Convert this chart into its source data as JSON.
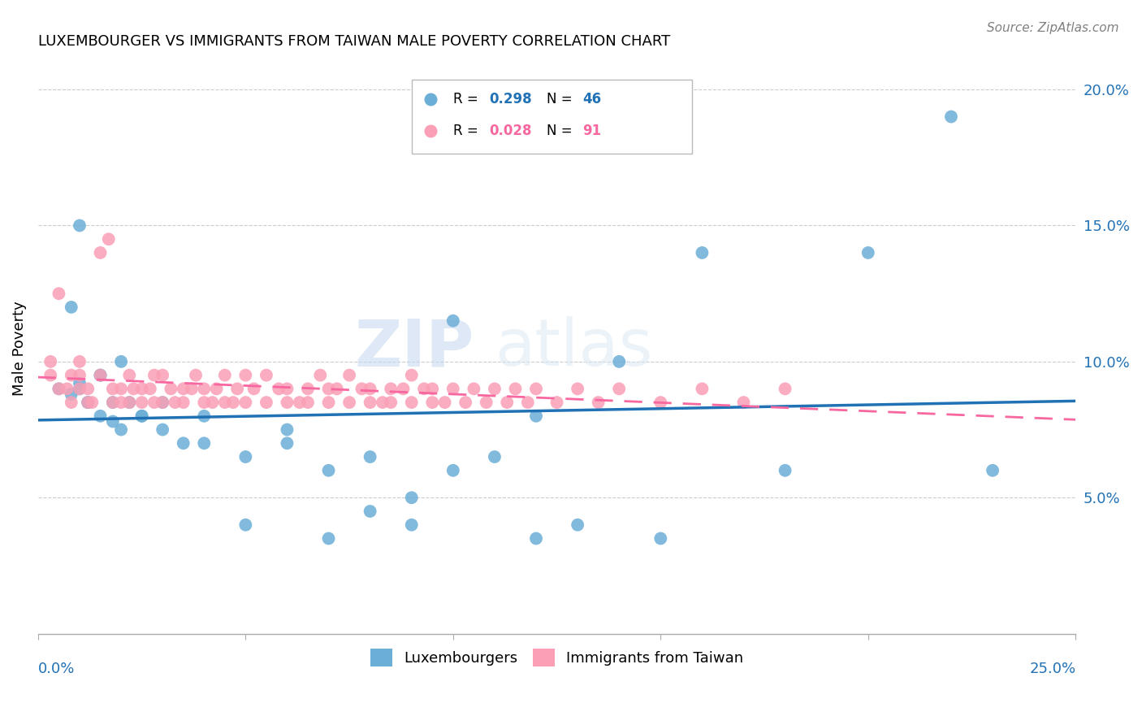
{
  "title": "LUXEMBOURGER VS IMMIGRANTS FROM TAIWAN MALE POVERTY CORRELATION CHART",
  "source": "Source: ZipAtlas.com",
  "ylabel": "Male Poverty",
  "xlim": [
    0.0,
    0.25
  ],
  "ylim": [
    0.0,
    0.21
  ],
  "yticks": [
    0.05,
    0.1,
    0.15,
    0.2
  ],
  "ytick_labels": [
    "5.0%",
    "10.0%",
    "15.0%",
    "20.0%"
  ],
  "xticks": [
    0.0,
    0.05,
    0.1,
    0.15,
    0.2,
    0.25
  ],
  "blue_color": "#6baed6",
  "pink_color": "#fa9fb5",
  "blue_line_color": "#2171b5",
  "pink_line_color": "#f768a1",
  "watermark_zip": "ZIP",
  "watermark_atlas": "atlas",
  "legend_blue_text": "R = 0.298   N = 46",
  "legend_pink_text": "R = 0.028   N = 91",
  "legend_blue_r": "0.298",
  "legend_blue_n": "46",
  "legend_pink_r": "0.028",
  "legend_pink_n": "91",
  "blue_scatter_x": [
    0.005,
    0.008,
    0.01,
    0.012,
    0.015,
    0.018,
    0.02,
    0.022,
    0.025,
    0.008,
    0.01,
    0.012,
    0.015,
    0.018,
    0.02,
    0.025,
    0.03,
    0.035,
    0.04,
    0.05,
    0.06,
    0.07,
    0.08,
    0.09,
    0.1,
    0.11,
    0.12,
    0.13,
    0.15,
    0.16,
    0.18,
    0.2,
    0.22,
    0.23,
    0.04,
    0.05,
    0.06,
    0.07,
    0.08,
    0.09,
    0.1,
    0.12,
    0.14,
    0.03,
    0.015,
    0.01
  ],
  "blue_scatter_y": [
    0.09,
    0.088,
    0.092,
    0.085,
    0.095,
    0.085,
    0.1,
    0.085,
    0.08,
    0.12,
    0.09,
    0.085,
    0.08,
    0.078,
    0.075,
    0.08,
    0.075,
    0.07,
    0.07,
    0.065,
    0.07,
    0.06,
    0.065,
    0.05,
    0.06,
    0.065,
    0.035,
    0.04,
    0.035,
    0.14,
    0.06,
    0.14,
    0.19,
    0.06,
    0.08,
    0.04,
    0.075,
    0.035,
    0.045,
    0.04,
    0.115,
    0.08,
    0.1,
    0.085,
    0.095,
    0.15
  ],
  "pink_scatter_x": [
    0.003,
    0.005,
    0.007,
    0.008,
    0.01,
    0.01,
    0.012,
    0.013,
    0.015,
    0.015,
    0.017,
    0.018,
    0.018,
    0.02,
    0.02,
    0.022,
    0.022,
    0.023,
    0.025,
    0.025,
    0.027,
    0.028,
    0.028,
    0.03,
    0.03,
    0.032,
    0.033,
    0.035,
    0.035,
    0.037,
    0.038,
    0.04,
    0.04,
    0.042,
    0.043,
    0.045,
    0.045,
    0.047,
    0.048,
    0.05,
    0.05,
    0.052,
    0.055,
    0.055,
    0.058,
    0.06,
    0.06,
    0.063,
    0.065,
    0.065,
    0.068,
    0.07,
    0.07,
    0.072,
    0.075,
    0.075,
    0.078,
    0.08,
    0.08,
    0.083,
    0.085,
    0.085,
    0.088,
    0.09,
    0.09,
    0.093,
    0.095,
    0.095,
    0.098,
    0.1,
    0.103,
    0.105,
    0.108,
    0.11,
    0.113,
    0.115,
    0.118,
    0.12,
    0.125,
    0.13,
    0.135,
    0.14,
    0.15,
    0.16,
    0.17,
    0.18,
    0.005,
    0.008,
    0.01,
    0.012,
    0.003
  ],
  "pink_scatter_y": [
    0.095,
    0.125,
    0.09,
    0.085,
    0.095,
    0.1,
    0.09,
    0.085,
    0.095,
    0.14,
    0.145,
    0.09,
    0.085,
    0.09,
    0.085,
    0.085,
    0.095,
    0.09,
    0.085,
    0.09,
    0.09,
    0.085,
    0.095,
    0.085,
    0.095,
    0.09,
    0.085,
    0.09,
    0.085,
    0.09,
    0.095,
    0.085,
    0.09,
    0.085,
    0.09,
    0.085,
    0.095,
    0.085,
    0.09,
    0.085,
    0.095,
    0.09,
    0.085,
    0.095,
    0.09,
    0.085,
    0.09,
    0.085,
    0.09,
    0.085,
    0.095,
    0.09,
    0.085,
    0.09,
    0.085,
    0.095,
    0.09,
    0.085,
    0.09,
    0.085,
    0.09,
    0.085,
    0.09,
    0.085,
    0.095,
    0.09,
    0.085,
    0.09,
    0.085,
    0.09,
    0.085,
    0.09,
    0.085,
    0.09,
    0.085,
    0.09,
    0.085,
    0.09,
    0.085,
    0.09,
    0.085,
    0.09,
    0.085,
    0.09,
    0.085,
    0.09,
    0.09,
    0.095,
    0.09,
    0.085,
    0.1
  ]
}
